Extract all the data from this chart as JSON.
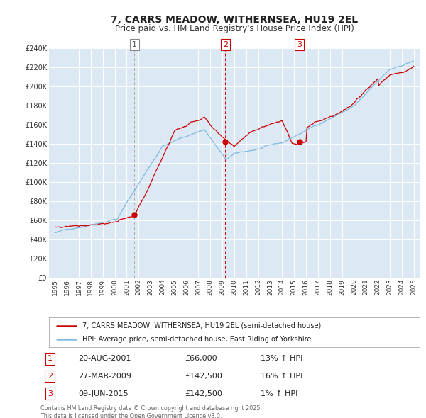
{
  "title": "7, CARRS MEADOW, WITHERNSEA, HU19 2EL",
  "subtitle": "Price paid vs. HM Land Registry's House Price Index (HPI)",
  "title_fontsize": 10,
  "subtitle_fontsize": 8.5,
  "plot_bg_color": "#dce9f5",
  "fig_bg_color": "#ffffff",
  "red_line_color": "#cc0000",
  "blue_line_color": "#7db9e0",
  "grid_color": "#ffffff",
  "vline_color_1": "#aaaaaa",
  "vline_color_23": "#cc0000",
  "sale_marker_color": "#cc0000",
  "ylim": [
    0,
    240000
  ],
  "yticks": [
    0,
    20000,
    40000,
    60000,
    80000,
    100000,
    120000,
    140000,
    160000,
    180000,
    200000,
    220000,
    240000
  ],
  "year_start": 1995,
  "year_end": 2025,
  "sale1_year": 2001.64,
  "sale1_price": 66000,
  "sale2_year": 2009.24,
  "sale2_price": 142500,
  "sale3_year": 2015.44,
  "sale3_price": 142500,
  "legend_line1": "7, CARRS MEADOW, WITHERNSEA, HU19 2EL (semi-detached house)",
  "legend_line2": "HPI: Average price, semi-detached house, East Riding of Yorkshire",
  "table_entries": [
    {
      "num": "1",
      "date": "20-AUG-2001",
      "price": "£66,000",
      "hpi": "13% ↑ HPI"
    },
    {
      "num": "2",
      "date": "27-MAR-2009",
      "price": "£142,500",
      "hpi": "16% ↑ HPI"
    },
    {
      "num": "3",
      "date": "09-JUN-2015",
      "price": "£142,500",
      "hpi": "1% ↑ HPI"
    }
  ],
  "footnote": "Contains HM Land Registry data © Crown copyright and database right 2025.\nThis data is licensed under the Open Government Licence v3.0."
}
